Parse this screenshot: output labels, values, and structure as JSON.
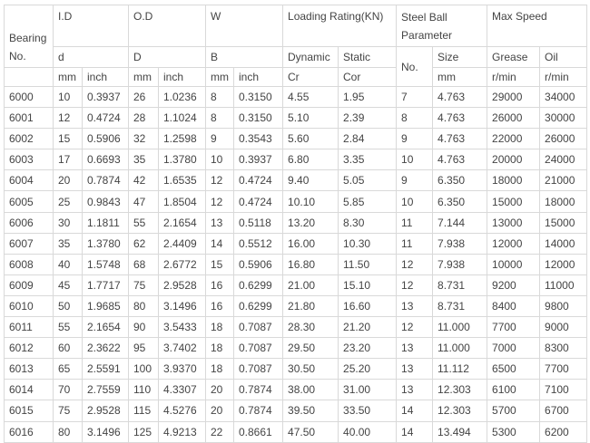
{
  "header": {
    "bearing_no": "Bearing No.",
    "id": "I.D",
    "od": "O.D",
    "w": "W",
    "loading": "Loading Rating(KN)",
    "steel_ball": "Steel Ball Parameter",
    "max_speed": "Max Speed",
    "d": "d",
    "D": "D",
    "B": "B",
    "dynamic": "Dynamic",
    "static": "Static",
    "no": "No.",
    "size": "Size",
    "grease": "Grease",
    "oil": "Oil",
    "mm": "mm",
    "inch": "inch",
    "cr": "Cr",
    "cor": "Cor",
    "rmin": "r/min"
  },
  "rows": [
    [
      "6000",
      "10",
      "0.3937",
      "26",
      "1.0236",
      "8",
      "0.3150",
      "4.55",
      "1.95",
      "7",
      "4.763",
      "29000",
      "34000"
    ],
    [
      "6001",
      "12",
      "0.4724",
      "28",
      "1.1024",
      "8",
      "0.3150",
      "5.10",
      "2.39",
      "8",
      "4.763",
      "26000",
      "30000"
    ],
    [
      "6002",
      "15",
      "0.5906",
      "32",
      "1.2598",
      "9",
      "0.3543",
      "5.60",
      "2.84",
      "9",
      "4.763",
      "22000",
      "26000"
    ],
    [
      "6003",
      "17",
      "0.6693",
      "35",
      "1.3780",
      "10",
      "0.3937",
      "6.80",
      "3.35",
      "10",
      "4.763",
      "20000",
      "24000"
    ],
    [
      "6004",
      "20",
      "0.7874",
      "42",
      "1.6535",
      "12",
      "0.4724",
      "9.40",
      "5.05",
      "9",
      "6.350",
      "18000",
      "21000"
    ],
    [
      "6005",
      "25",
      "0.9843",
      "47",
      "1.8504",
      "12",
      "0.4724",
      "10.10",
      "5.85",
      "10",
      "6.350",
      "15000",
      "18000"
    ],
    [
      "6006",
      "30",
      "1.1811",
      "55",
      "2.1654",
      "13",
      "0.5118",
      "13.20",
      "8.30",
      "11",
      "7.144",
      "13000",
      "15000"
    ],
    [
      "6007",
      "35",
      "1.3780",
      "62",
      "2.4409",
      "14",
      "0.5512",
      "16.00",
      "10.30",
      "11",
      "7.938",
      "12000",
      "14000"
    ],
    [
      "6008",
      "40",
      "1.5748",
      "68",
      "2.6772",
      "15",
      "0.5906",
      "16.80",
      "11.50",
      "12",
      "7.938",
      "10000",
      "12000"
    ],
    [
      "6009",
      "45",
      "1.7717",
      "75",
      "2.9528",
      "16",
      "0.6299",
      "21.00",
      "15.10",
      "12",
      "8.731",
      "9200",
      "11000"
    ],
    [
      "6010",
      "50",
      "1.9685",
      "80",
      "3.1496",
      "16",
      "0.6299",
      "21.80",
      "16.60",
      "13",
      "8.731",
      "8400",
      "9800"
    ],
    [
      "6011",
      "55",
      "2.1654",
      "90",
      "3.5433",
      "18",
      "0.7087",
      "28.30",
      "21.20",
      "12",
      "11.000",
      "7700",
      "9000"
    ],
    [
      "6012",
      "60",
      "2.3622",
      "95",
      "3.7402",
      "18",
      "0.7087",
      "29.50",
      "23.20",
      "13",
      "11.000",
      "7000",
      "8300"
    ],
    [
      "6013",
      "65",
      "2.5591",
      "100",
      "3.9370",
      "18",
      "0.7087",
      "30.50",
      "25.20",
      "13",
      "11.112",
      "6500",
      "7700"
    ],
    [
      "6014",
      "70",
      "2.7559",
      "110",
      "4.3307",
      "20",
      "0.7874",
      "38.00",
      "31.00",
      "13",
      "12.303",
      "6100",
      "7100"
    ],
    [
      "6015",
      "75",
      "2.9528",
      "115",
      "4.5276",
      "20",
      "0.7874",
      "39.50",
      "33.50",
      "14",
      "12.303",
      "5700",
      "6700"
    ],
    [
      "6016",
      "80",
      "3.1496",
      "125",
      "4.9213",
      "22",
      "0.8661",
      "47.50",
      "40.00",
      "14",
      "13.494",
      "5300",
      "6200"
    ]
  ]
}
